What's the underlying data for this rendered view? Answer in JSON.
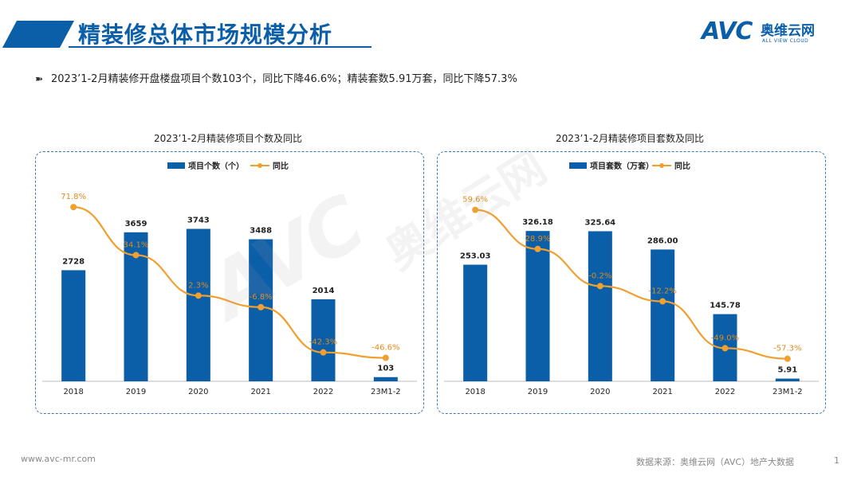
{
  "header": {
    "title": "精装修总体市场规模分析",
    "logo_text": "AVC",
    "logo_cn": "奥维云网",
    "logo_en": "ALL VIEW CLOUD"
  },
  "summary": {
    "bullet_icon": "double-arrow-icon",
    "text": "2023’1-2月精装修开盘楼盘项目个数103个，同比下降46.6%；精装套数5.91万套，同比下降57.3%"
  },
  "watermark": {
    "text": "AVC",
    "cn": "奥维云网"
  },
  "footer": {
    "website": "www.avc-mr.com",
    "source": "数据来源：奥维云网（AVC）地产大数据",
    "page": "1"
  },
  "colors": {
    "bar": "#0b5ea8",
    "line": "#f0a030",
    "accent": "#0b5ea8",
    "panel_border": "#3a78b8"
  },
  "chart_data": [
    {
      "type": "bar",
      "title": "2023’1-2月精装修项目个数及同比",
      "categories": [
        "2018",
        "2019",
        "2020",
        "2021",
        "2022",
        "23M1-2"
      ],
      "series": [
        {
          "name": "项目个数（个）",
          "type": "bar",
          "values": [
            2728,
            3659,
            3743,
            3488,
            2014,
            103
          ],
          "labels": [
            "2728",
            "3659",
            "3743",
            "3488",
            "2014",
            "103"
          ]
        },
        {
          "name": "同比",
          "type": "line",
          "values": [
            71.8,
            34.1,
            2.3,
            -6.8,
            -42.3,
            -46.6
          ],
          "labels": [
            "71.8%",
            "34.1%",
            "2.3%",
            "-6.8%",
            "-42.3%",
            "-46.6%"
          ]
        }
      ],
      "bar_max": 4300,
      "line_range": [
        -60,
        90
      ],
      "legend_position": "top-center",
      "grid": false
    },
    {
      "type": "bar",
      "title": "2023’1-2月精装修项目套数及同比",
      "categories": [
        "2018",
        "2019",
        "2020",
        "2021",
        "2022",
        "23M1-2"
      ],
      "series": [
        {
          "name": "项目套数（万套）",
          "type": "bar",
          "values": [
            253.03,
            326.18,
            325.64,
            286.0,
            145.78,
            5.91
          ],
          "labels": [
            "253.03",
            "326.18",
            "325.64",
            "286.00",
            "145.78",
            "5.91"
          ]
        },
        {
          "name": "同比",
          "type": "line",
          "values": [
            59.6,
            28.9,
            -0.2,
            -12.2,
            -49.0,
            -57.3
          ],
          "labels": [
            "59.6%",
            "28.9%",
            "-0.2%",
            "-12.2%",
            "-49.0%",
            "-57.3%"
          ]
        }
      ],
      "bar_max": 380,
      "line_range": [
        -70,
        80
      ],
      "legend_position": "top-center",
      "grid": false
    }
  ]
}
